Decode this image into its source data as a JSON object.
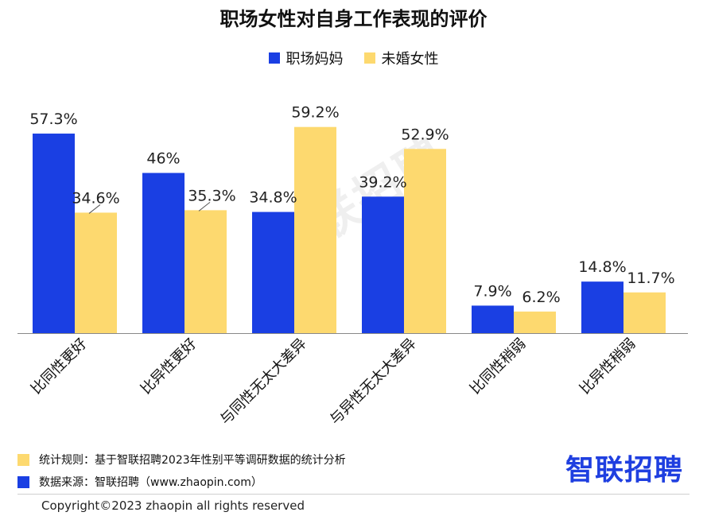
{
  "title": "职场女性对自身工作表现的评价",
  "watermark": "智联招聘",
  "colors": {
    "mothers": "#1a3fe3",
    "unmarried": "#fdd96f",
    "axis": "#888888",
    "leader": "#555555"
  },
  "chart_data": {
    "type": "bar",
    "title": "职场女性对自身工作表现的评价",
    "categories": [
      "比同性更好",
      "比异性更好",
      "与同性无太大差异",
      "与异性无太大差异",
      "比同性稍弱",
      "比异性稍弱"
    ],
    "series": [
      {
        "name": "职场妈妈",
        "values": [
          57.3,
          46,
          34.8,
          39.2,
          7.9,
          14.8
        ],
        "labels": [
          "57.3%",
          "46%",
          "34.8%",
          "39.2%",
          "7.9%",
          "14.8%"
        ]
      },
      {
        "name": "未婚女性",
        "values": [
          34.6,
          35.3,
          59.2,
          52.9,
          6.2,
          11.7
        ],
        "labels": [
          "34.6%",
          "35.3%",
          "59.2%",
          "52.9%",
          "6.2%",
          "11.7%"
        ]
      }
    ],
    "ylim": [
      0,
      60
    ],
    "legend": "top-center",
    "grid": false
  },
  "notes": [
    {
      "text": "统计规则：基于智联招聘2023年性别平等调研数据的统计分析",
      "color": "#fdd96f"
    },
    {
      "text": "数据来源：智联招聘（www.zhaopin.com）",
      "color": "#1a3fe3"
    }
  ],
  "brand": "智联招聘",
  "copyright": "Copyright©2023 zhaopin all rights reserved"
}
